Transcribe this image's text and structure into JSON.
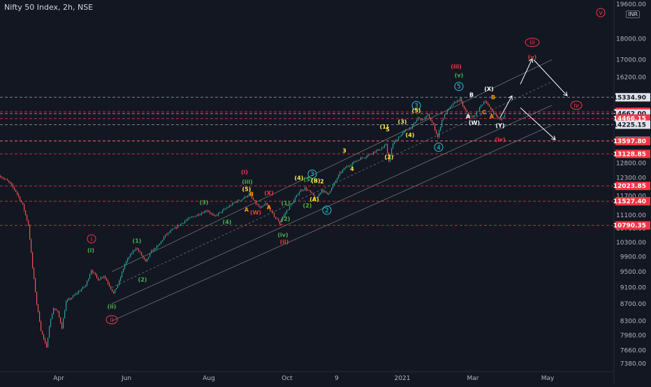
{
  "header": {
    "title": "Nifty 50 Index, 2h, NSE",
    "currency": "INR",
    "top_price": "19600.00"
  },
  "colors": {
    "background": "#131722",
    "up": "#26a69a",
    "down": "#ef5350",
    "channel": "#9598a1",
    "red_level": "#f23645",
    "white_level": "#9aa0ad",
    "wave_red": "#f23645",
    "wave_green": "#4caf50",
    "wave_cyan": "#26c6da",
    "wave_yellow": "#ffeb3b",
    "wave_orange": "#ff9800",
    "wave_white": "#ffffff"
  },
  "chart_data": {
    "type": "candlestick",
    "title": "Nifty 50 Index, 2h, NSE",
    "y_scale": "log",
    "ylim": [
      7250,
      19800
    ],
    "y_ticks": [
      7380,
      7660,
      7980,
      8300,
      8700,
      9100,
      9500,
      9900,
      10300,
      10700,
      11100,
      11700,
      12300,
      12800,
      13600,
      14200,
      15300,
      16200,
      17000,
      18000,
      19600
    ],
    "y_tick_labels": [
      "7380.00",
      "7660.00",
      "7980.00",
      "8300.00",
      "8700.00",
      "9100.00",
      "9500.00",
      "9900.00",
      "10300.00",
      "10700.00",
      "11100.00",
      "11700.00",
      "12300.00",
      "12800.00",
      "13600.00",
      "14200.00",
      "15300.00",
      "16200.00",
      "17000.00",
      "18000.00",
      "19600.00"
    ],
    "x_ticks": [
      "Apr",
      "Jun",
      "Aug",
      "Oct",
      "9",
      "2021",
      "Mar",
      "May"
    ],
    "price_path": [
      [
        0,
        12350
      ],
      [
        12,
        12150
      ],
      [
        22,
        11850
      ],
      [
        32,
        11400
      ],
      [
        40,
        10800
      ],
      [
        46,
        9600
      ],
      [
        52,
        8700
      ],
      [
        58,
        8100
      ],
      [
        62,
        7900
      ],
      [
        66,
        7700
      ],
      [
        70,
        8200
      ],
      [
        76,
        8600
      ],
      [
        82,
        8500
      ],
      [
        88,
        8150
      ],
      [
        94,
        8750
      ],
      [
        102,
        8850
      ],
      [
        112,
        9000
      ],
      [
        122,
        9150
      ],
      [
        130,
        9550
      ],
      [
        140,
        9300
      ],
      [
        148,
        9400
      ],
      [
        156,
        9150
      ],
      [
        162,
        8950
      ],
      [
        170,
        9250
      ],
      [
        178,
        9700
      ],
      [
        186,
        9950
      ],
      [
        194,
        10150
      ],
      [
        200,
        10000
      ],
      [
        208,
        9750
      ],
      [
        216,
        10050
      ],
      [
        226,
        10200
      ],
      [
        236,
        10500
      ],
      [
        246,
        10650
      ],
      [
        256,
        10800
      ],
      [
        266,
        10950
      ],
      [
        276,
        11050
      ],
      [
        286,
        11150
      ],
      [
        296,
        11250
      ],
      [
        306,
        11050
      ],
      [
        316,
        11200
      ],
      [
        326,
        11350
      ],
      [
        336,
        11500
      ],
      [
        346,
        11600
      ],
      [
        356,
        11750
      ],
      [
        364,
        11500
      ],
      [
        372,
        11300
      ],
      [
        380,
        11450
      ],
      [
        388,
        11200
      ],
      [
        394,
        11000
      ],
      [
        400,
        10900
      ],
      [
        406,
        11100
      ],
      [
        412,
        11300
      ],
      [
        420,
        11550
      ],
      [
        428,
        11850
      ],
      [
        436,
        11950
      ],
      [
        444,
        11800
      ],
      [
        452,
        11600
      ],
      [
        460,
        11900
      ],
      [
        468,
        11750
      ],
      [
        474,
        11950
      ],
      [
        480,
        12200
      ],
      [
        486,
        12450
      ],
      [
        494,
        12650
      ],
      [
        504,
        12800
      ],
      [
        514,
        12950
      ],
      [
        524,
        13050
      ],
      [
        534,
        13200
      ],
      [
        544,
        13300
      ],
      [
        552,
        13450
      ],
      [
        556,
        12900
      ],
      [
        562,
        13500
      ],
      [
        570,
        13750
      ],
      [
        580,
        14000
      ],
      [
        590,
        14150
      ],
      [
        598,
        14500
      ],
      [
        604,
        14400
      ],
      [
        612,
        14600
      ],
      [
        620,
        14200
      ],
      [
        626,
        13750
      ],
      [
        632,
        14400
      ],
      [
        638,
        14700
      ],
      [
        646,
        15000
      ],
      [
        652,
        15150
      ],
      [
        658,
        15250
      ],
      [
        664,
        14850
      ],
      [
        670,
        14600
      ],
      [
        676,
        14500
      ],
      [
        682,
        14700
      ],
      [
        688,
        15000
      ],
      [
        694,
        15200
      ],
      [
        700,
        14900
      ],
      [
        706,
        14700
      ],
      [
        712,
        14500
      ],
      [
        716,
        14400
      ],
      [
        722,
        14600
      ]
    ],
    "price_levels": [
      {
        "value": 15334.9,
        "label": "15334.90",
        "style": "white"
      },
      {
        "value": 14735.7,
        "label": "14735.70",
        "style": "red"
      },
      {
        "value": 14662.0,
        "label": "14662.00",
        "style": "white"
      },
      {
        "value": 14466.15,
        "label": "14466.15",
        "style": "red"
      },
      {
        "value": 14225.15,
        "label": "14225.15",
        "style": "white"
      },
      {
        "value": 13605.8,
        "label": "13605.80",
        "style": "white"
      },
      {
        "value": 13597.8,
        "label": "13597.80",
        "style": "red"
      },
      {
        "value": 13128.85,
        "label": "13128.85",
        "style": "red"
      },
      {
        "value": 12023.85,
        "label": "12023.85",
        "style": "red"
      },
      {
        "value": 11527.4,
        "label": "11527.40",
        "style": "red"
      },
      {
        "value": 10790.35,
        "label": "10790.35",
        "style": "red"
      }
    ],
    "wave_labels": [
      {
        "text": "v",
        "x": 860,
        "price": 19350,
        "color": "red",
        "circle": true
      },
      {
        "text": "iii",
        "x": 762,
        "price": 17830,
        "color": "red",
        "circle": true
      },
      {
        "text": "(v)",
        "x": 762,
        "price": 17130,
        "color": "red",
        "circle": false
      },
      {
        "text": "iv",
        "x": 825,
        "price": 15000,
        "color": "red",
        "circle": true
      },
      {
        "text": "(iii)",
        "x": 653,
        "price": 16700,
        "color": "red",
        "circle": false
      },
      {
        "text": "(v)",
        "x": 657,
        "price": 16300,
        "color": "green",
        "circle": false
      },
      {
        "text": "5",
        "x": 657,
        "price": 15800,
        "color": "cyan",
        "circle": true
      },
      {
        "text": "(X)",
        "x": 700,
        "price": 15700,
        "color": "white",
        "circle": false
      },
      {
        "text": "B",
        "x": 675,
        "price": 15450,
        "color": "white",
        "circle": false
      },
      {
        "text": "B",
        "x": 706,
        "price": 15350,
        "color": "orange",
        "circle": false
      },
      {
        "text": "A",
        "x": 670,
        "price": 14550,
        "color": "white",
        "circle": false
      },
      {
        "text": "A",
        "x": 704,
        "price": 14550,
        "color": "orange",
        "circle": false
      },
      {
        "text": "C",
        "x": 693,
        "price": 14720,
        "color": "orange",
        "circle": false
      },
      {
        "text": "(W)",
        "x": 679,
        "price": 14300,
        "color": "white",
        "circle": false
      },
      {
        "text": "(Y)",
        "x": 716,
        "price": 14200,
        "color": "white",
        "circle": false
      },
      {
        "text": "(iv)",
        "x": 716,
        "price": 13660,
        "color": "red",
        "circle": false
      },
      {
        "text": "4",
        "x": 628,
        "price": 13370,
        "color": "cyan",
        "circle": true
      },
      {
        "text": "3",
        "x": 596,
        "price": 14990,
        "color": "cyan",
        "circle": true
      },
      {
        "text": "(5)",
        "x": 596,
        "price": 14800,
        "color": "yellow",
        "circle": false
      },
      {
        "text": "(3)",
        "x": 576,
        "price": 14350,
        "color": "yellow",
        "circle": false
      },
      {
        "text": "(1)",
        "x": 550,
        "price": 14150,
        "color": "yellow",
        "circle": false
      },
      {
        "text": "5",
        "x": 555,
        "price": 14050,
        "color": "yellow",
        "circle": false
      },
      {
        "text": "(4)",
        "x": 587,
        "price": 13830,
        "color": "yellow",
        "circle": false
      },
      {
        "text": "(2)",
        "x": 557,
        "price": 13020,
        "color": "yellow",
        "circle": false
      },
      {
        "text": "3",
        "x": 493,
        "price": 13250,
        "color": "yellow",
        "circle": false
      },
      {
        "text": "4",
        "x": 504,
        "price": 12600,
        "color": "yellow",
        "circle": false
      },
      {
        "text": "3",
        "x": 447,
        "price": 12420,
        "color": "cyan",
        "circle": true
      },
      {
        "text": "2",
        "x": 468,
        "price": 11250,
        "color": "cyan",
        "circle": true
      },
      {
        "text": "(i)",
        "x": 350,
        "price": 12500,
        "color": "red",
        "circle": false
      },
      {
        "text": "(iii)",
        "x": 354,
        "price": 12170,
        "color": "green",
        "circle": false
      },
      {
        "text": "(5)",
        "x": 353,
        "price": 11920,
        "color": "yellow",
        "circle": false
      },
      {
        "text": "B",
        "x": 360,
        "price": 11760,
        "color": "orange",
        "circle": false
      },
      {
        "text": "(X)",
        "x": 385,
        "price": 11800,
        "color": "red",
        "circle": false
      },
      {
        "text": "A",
        "x": 353,
        "price": 11270,
        "color": "orange",
        "circle": false
      },
      {
        "text": "(W)",
        "x": 366,
        "price": 11180,
        "color": "red",
        "circle": false
      },
      {
        "text": "A",
        "x": 385,
        "price": 11340,
        "color": "orange",
        "circle": false
      },
      {
        "text": "C",
        "x": 402,
        "price": 10860,
        "color": "red",
        "circle": false
      },
      {
        "text": "(iv)",
        "x": 405,
        "price": 10520,
        "color": "green",
        "circle": false
      },
      {
        "text": "(ii)",
        "x": 407,
        "price": 10320,
        "color": "red",
        "circle": false
      },
      {
        "text": "(3)",
        "x": 292,
        "price": 11500,
        "color": "green",
        "circle": false
      },
      {
        "text": "(4)",
        "x": 325,
        "price": 10900,
        "color": "green",
        "circle": false
      },
      {
        "text": "(2)",
        "x": 409,
        "price": 10990,
        "color": "green",
        "circle": false
      },
      {
        "text": "(1)",
        "x": 409,
        "price": 11470,
        "color": "green",
        "circle": false
      },
      {
        "text": "(4)",
        "x": 428,
        "price": 12300,
        "color": "yellow",
        "circle": false
      },
      {
        "text": "(5)",
        "x": 441,
        "price": 12250,
        "color": "green",
        "circle": false
      },
      {
        "text": "(B)",
        "x": 452,
        "price": 12200,
        "color": "yellow",
        "circle": false
      },
      {
        "text": "2",
        "x": 461,
        "price": 12180,
        "color": "yellow",
        "circle": false
      },
      {
        "text": "(A)",
        "x": 450,
        "price": 11600,
        "color": "yellow",
        "circle": false
      },
      {
        "text": "(2)",
        "x": 440,
        "price": 11400,
        "color": "green",
        "circle": false
      },
      {
        "text": "(1)",
        "x": 196,
        "price": 10350,
        "color": "green",
        "circle": false
      },
      {
        "text": "(2)",
        "x": 204,
        "price": 9300,
        "color": "green",
        "circle": false
      },
      {
        "text": "i",
        "x": 131,
        "price": 10400,
        "color": "red",
        "circle": true
      },
      {
        "text": "(i)",
        "x": 130,
        "price": 10080,
        "color": "green",
        "circle": false
      },
      {
        "text": "(ii)",
        "x": 160,
        "price": 8640,
        "color": "green",
        "circle": false
      },
      {
        "text": "ii",
        "x": 160,
        "price": 8330,
        "color": "red",
        "circle": true
      }
    ]
  }
}
